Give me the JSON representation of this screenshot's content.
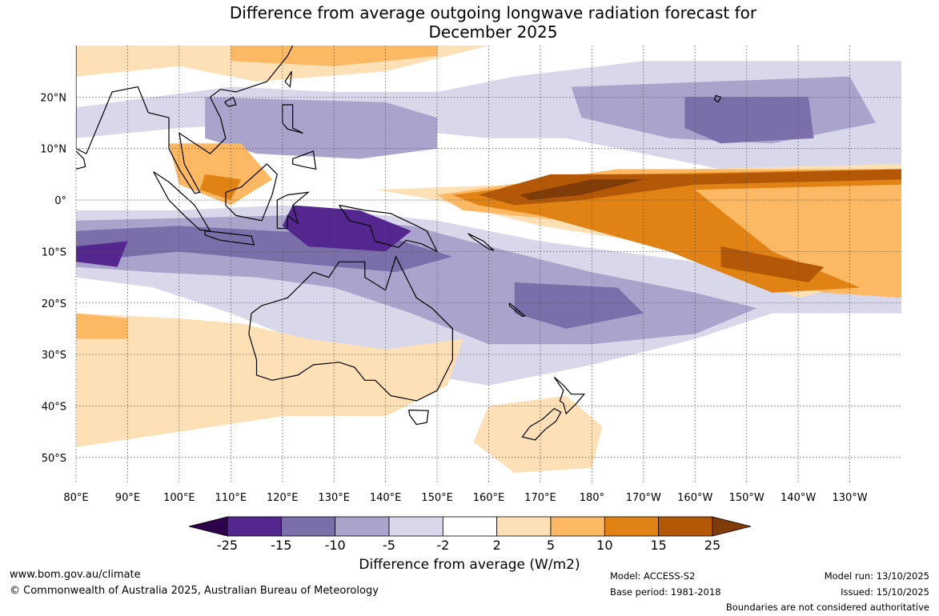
{
  "title": {
    "line1": "Difference from average outgoing longwave radiation forecast for",
    "line2": "December 2025"
  },
  "axes": {
    "lon_ticks": [
      "80°E",
      "90°E",
      "100°E",
      "110°E",
      "120°E",
      "130°E",
      "140°E",
      "150°E",
      "160°E",
      "170°E",
      "180°",
      "170°W",
      "160°W",
      "150°W",
      "140°W",
      "130°W"
    ],
    "lon_values": [
      80,
      90,
      100,
      110,
      120,
      130,
      140,
      150,
      160,
      170,
      180,
      190,
      200,
      210,
      220,
      230
    ],
    "lat_ticks": [
      "20°N",
      "10°N",
      "0°",
      "10°S",
      "20°S",
      "30°S",
      "40°S",
      "50°S"
    ],
    "lat_values": [
      20,
      10,
      0,
      -10,
      -20,
      -30,
      -40,
      -50
    ],
    "lon_range": [
      80,
      240
    ],
    "lat_range": [
      -55,
      30
    ]
  },
  "colorbar": {
    "labels": [
      "-25",
      "-15",
      "-10",
      "-5",
      "-2",
      "2",
      "5",
      "10",
      "15",
      "25"
    ],
    "colors": [
      "#54278f",
      "#7b6faa",
      "#aaa4cd",
      "#d9d8ea",
      "#ffffff",
      "#fee0b6",
      "#fdb863",
      "#e08214",
      "#b35806"
    ],
    "under_color": "#2d004b",
    "over_color": "#7f3b08",
    "title": "Difference from average (W/m2)"
  },
  "footer": {
    "website": "www.bom.gov.au/climate",
    "copyright": "© Commonwealth of Australia 2025, Australian Bureau of Meteorology",
    "model": "Model: ACCESS-S2",
    "base_period": "Base period: 1981-2018",
    "model_run": "Model run: 13/10/2025",
    "issued": "Issued: 15/10/2025",
    "disclaimer": "Boundaries are not considered authoritative"
  }
}
